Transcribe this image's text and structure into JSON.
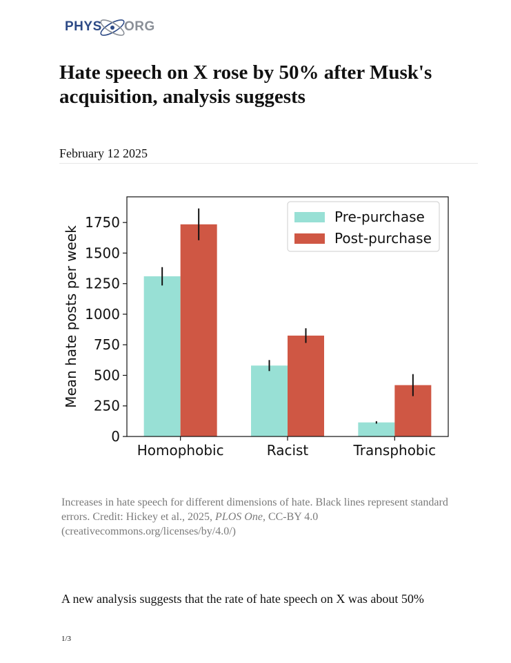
{
  "logo": {
    "phys": "PHYS",
    "org": "ORG"
  },
  "article": {
    "headline": "Hate speech on X rose by 50% after Musk's acquisition, analysis suggests",
    "date": "February 12 2025",
    "caption": {
      "text": "Increases in hate speech for different dimensions of hate. Black lines represent standard errors. Credit: Hickey et al., 2025, ",
      "journal": "PLOS One",
      "license": ", CC-BY 4.0 (creativecommons.org/licenses/by/4.0/)"
    },
    "body_first_line": "A new analysis suggests that the rate of hate speech on X was about 50%",
    "page_number": "1/3"
  },
  "colors": {
    "pre": "#98e0d5",
    "post": "#cf5744",
    "logo_blue": "#2d4a86",
    "logo_gray": "#8a8f97"
  },
  "chart_data": {
    "type": "bar",
    "categories": [
      "Homophobic",
      "Racist",
      "Transphobic"
    ],
    "series": [
      {
        "name": "Pre-purchase",
        "values": [
          1310,
          580,
          115
        ],
        "errors": [
          75,
          45,
          10
        ],
        "color": "#98e0d5"
      },
      {
        "name": "Post-purchase",
        "values": [
          1735,
          825,
          420
        ],
        "errors": [
          130,
          60,
          90
        ],
        "color": "#cf5744"
      }
    ],
    "ylabel": "Mean hate posts per week",
    "xlabel": "",
    "ylim": [
      0,
      1960
    ],
    "yticks": [
      0,
      250,
      500,
      750,
      1000,
      1250,
      1500,
      1750
    ],
    "legend": "top-right",
    "grid": false
  }
}
